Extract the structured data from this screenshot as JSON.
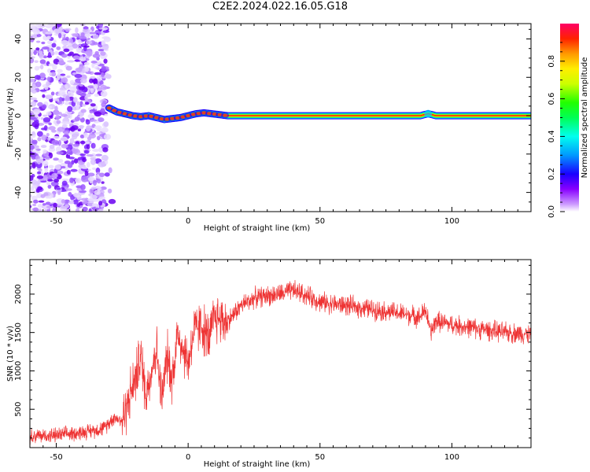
{
  "figure_title": "C2E2.2024.022.16.05.G18",
  "chart_data": [
    {
      "type": "heatmap",
      "title": "",
      "xlabel": "Height of straight line (km)",
      "ylabel": "Frequency (Hz)",
      "xlim": [
        -60,
        130
      ],
      "ylim": [
        -50,
        48
      ],
      "xticks": [
        -50,
        0,
        50,
        100
      ],
      "xtick_labels": [
        "-50",
        "0",
        "50",
        "100"
      ],
      "yticks": [
        -40,
        -20,
        0,
        20,
        40
      ],
      "ytick_labels": [
        "-40",
        "-20",
        "0",
        "20",
        "40"
      ],
      "colorbar": {
        "label": "Normalized spectral amplitude",
        "range": [
          0,
          1
        ],
        "ticks": [
          0.0,
          0.2,
          0.4,
          0.6,
          0.8
        ],
        "tick_labels": [
          "0.0",
          "0.2",
          "0.4",
          "0.6",
          "0.8"
        ]
      },
      "features": {
        "noise_region_x": [
          -60,
          -31
        ],
        "signal_line": {
          "x": [
            -30,
            -27,
            -24,
            -21,
            -18,
            -15,
            -12,
            -9,
            -6,
            -3,
            0,
            3,
            6,
            9,
            12,
            15,
            20,
            40,
            60,
            80,
            88,
            91,
            94,
            100,
            130
          ],
          "freq": [
            4,
            2,
            1,
            0,
            -0.5,
            0,
            -1,
            -2,
            -1.5,
            -1,
            0,
            1,
            1.5,
            1,
            0.5,
            0,
            0,
            0,
            0,
            0,
            0,
            1,
            0,
            0,
            0
          ]
        }
      }
    },
    {
      "type": "line",
      "title": "",
      "xlabel": "Height of straight line (km)",
      "ylabel": "SNR (10 * v/v)",
      "xlim": [
        -60,
        130
      ],
      "ylim": [
        0,
        2450
      ],
      "xticks": [
        -50,
        0,
        50,
        100
      ],
      "xtick_labels": [
        "-50",
        "0",
        "50",
        "100"
      ],
      "yticks": [
        500,
        1000,
        1500,
        2000
      ],
      "ytick_labels": [
        "500",
        "1000",
        "1500",
        "2000"
      ],
      "color": "#ee3333",
      "series": [
        {
          "x": [
            -60,
            -50,
            -40,
            -32,
            -28,
            -25,
            -22,
            -20,
            -18,
            -16,
            -14,
            -12,
            -10,
            -8,
            -6,
            -4,
            -2,
            0,
            2,
            5,
            8,
            10,
            15,
            20,
            25,
            30,
            35,
            40,
            45,
            50,
            60,
            70,
            80,
            88,
            90,
            92,
            94,
            100,
            110,
            120,
            130
          ],
          "y": [
            150,
            160,
            200,
            250,
            400,
            350,
            700,
            900,
            1200,
            700,
            1000,
            1300,
            600,
            1200,
            900,
            1500,
            1300,
            1100,
            1500,
            1600,
            1400,
            1700,
            1650,
            1850,
            1950,
            1980,
            2000,
            2050,
            1980,
            1900,
            1850,
            1800,
            1750,
            1700,
            1800,
            1500,
            1650,
            1600,
            1550,
            1500,
            1480
          ]
        }
      ]
    }
  ]
}
